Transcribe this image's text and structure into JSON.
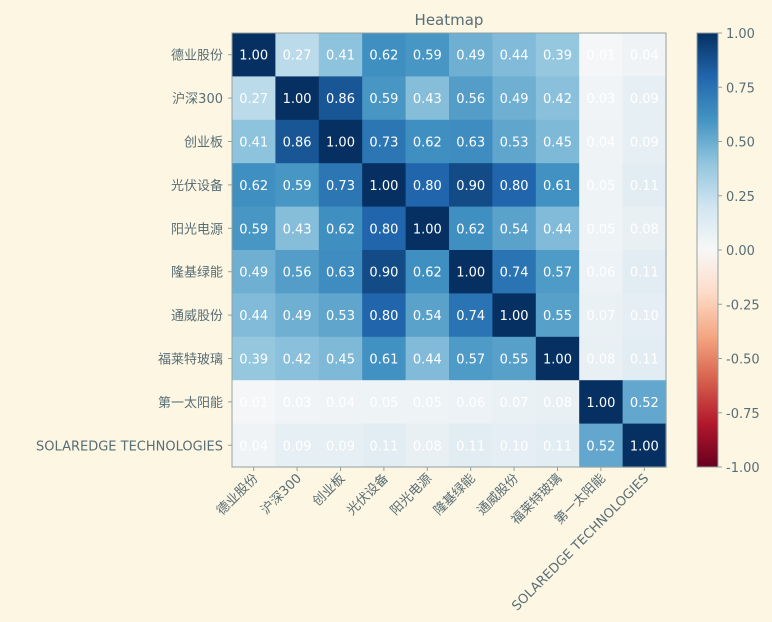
{
  "chart_data": {
    "type": "heatmap",
    "title": "Heatmap",
    "xlabel": "",
    "ylabel": "",
    "labels": [
      "德业股份",
      "沪深300",
      "创业板",
      "光伏设备",
      "阳光电源",
      "隆基绿能",
      "通威股份",
      "福莱特玻璃",
      "第一太阳能",
      "SOLAREDGE TECHNOLOGIES"
    ],
    "matrix": [
      [
        1.0,
        0.27,
        0.41,
        0.62,
        0.59,
        0.49,
        0.44,
        0.39,
        0.01,
        0.04
      ],
      [
        0.27,
        1.0,
        0.86,
        0.59,
        0.43,
        0.56,
        0.49,
        0.42,
        0.03,
        0.09
      ],
      [
        0.41,
        0.86,
        1.0,
        0.73,
        0.62,
        0.63,
        0.53,
        0.45,
        0.04,
        0.09
      ],
      [
        0.62,
        0.59,
        0.73,
        1.0,
        0.8,
        0.9,
        0.8,
        0.61,
        0.05,
        0.11
      ],
      [
        0.59,
        0.43,
        0.62,
        0.8,
        1.0,
        0.62,
        0.54,
        0.44,
        0.05,
        0.08
      ],
      [
        0.49,
        0.56,
        0.63,
        0.9,
        0.62,
        1.0,
        0.74,
        0.57,
        0.06,
        0.11
      ],
      [
        0.44,
        0.49,
        0.53,
        0.8,
        0.54,
        0.74,
        1.0,
        0.55,
        0.07,
        0.1
      ],
      [
        0.39,
        0.42,
        0.45,
        0.61,
        0.44,
        0.57,
        0.55,
        1.0,
        0.08,
        0.11
      ],
      [
        0.01,
        0.03,
        0.04,
        0.05,
        0.05,
        0.06,
        0.07,
        0.08,
        1.0,
        0.52
      ],
      [
        0.04,
        0.09,
        0.09,
        0.11,
        0.08,
        0.11,
        0.1,
        0.11,
        0.52,
        1.0
      ]
    ],
    "colormap": "RdBu",
    "vmin": -1.0,
    "vmax": 1.0,
    "colorbar_ticks": [
      "1.00",
      "0.75",
      "0.50",
      "0.25",
      "0.00",
      "-0.25",
      "-0.50",
      "-0.75",
      "-1.00"
    ],
    "grid": false,
    "colors": {
      "background": "#fdf6e3",
      "text": "#586e75",
      "axis": "#93a1a1"
    }
  }
}
